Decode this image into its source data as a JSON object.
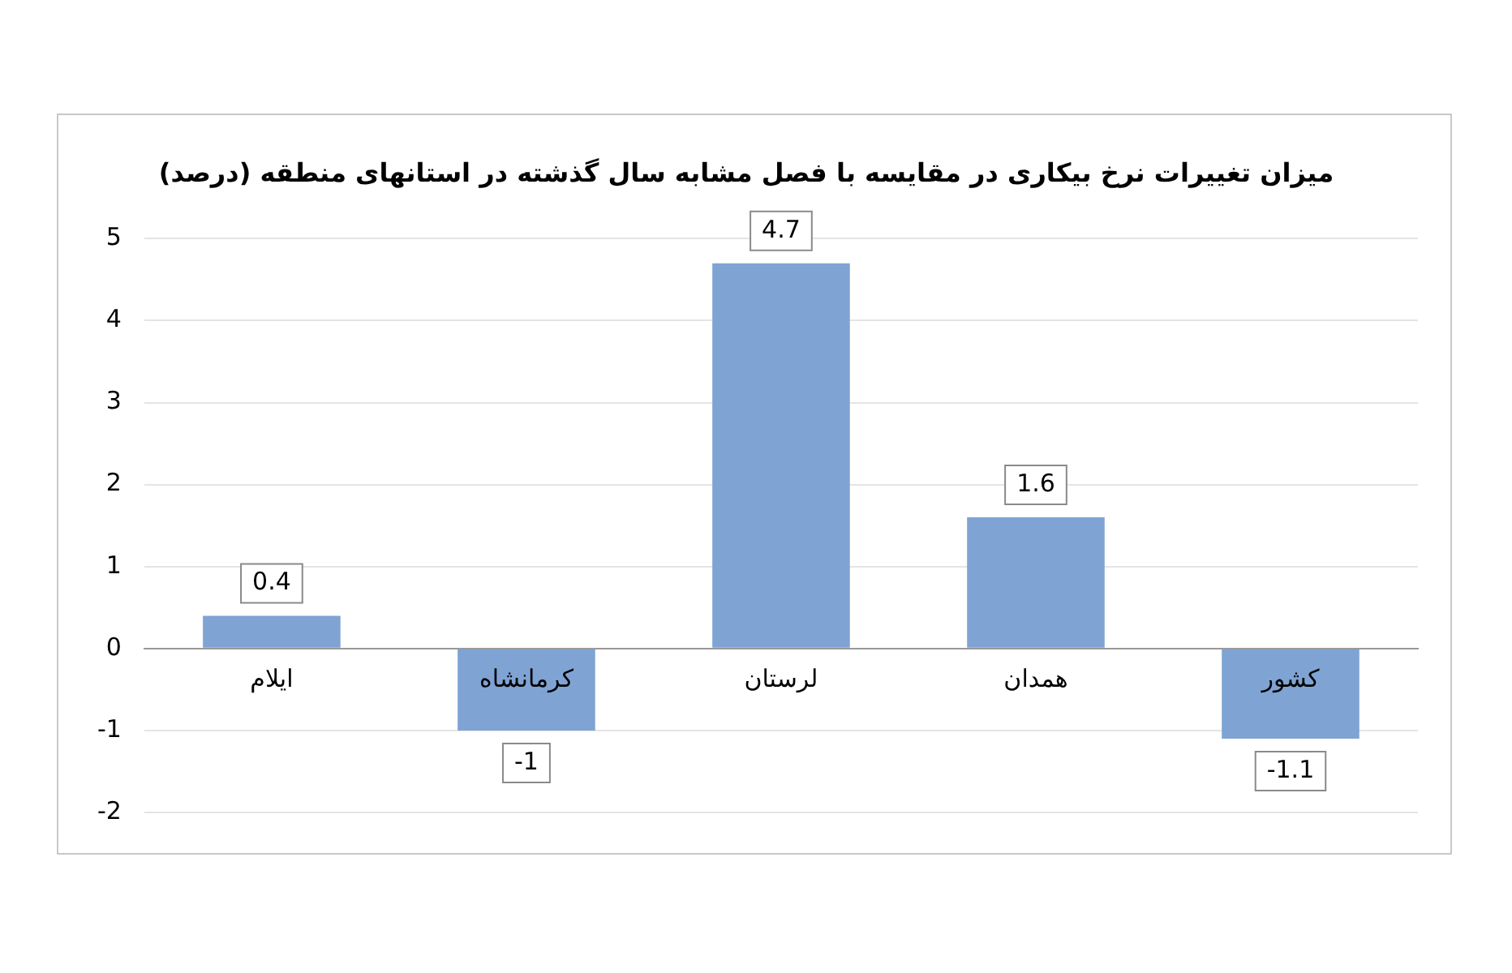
{
  "chart_data": {
    "type": "bar",
    "title": "میزان تغییرات نرخ بیکاری در مقایسه با فصل مشابه سال گذشته در استانهای منطقه (درصد)",
    "categories": [
      "ایلام",
      "کرمانشاه",
      "لرستان",
      "همدان",
      "کشور"
    ],
    "values": [
      0.4,
      -1,
      4.7,
      1.6,
      -1.1
    ],
    "color": "#7fa3d3",
    "ylim": [
      -2,
      5
    ],
    "yticks": [
      -2,
      -1,
      0,
      1,
      2,
      3,
      4,
      5
    ],
    "grid": "y",
    "data_labels": true,
    "legend": false
  }
}
